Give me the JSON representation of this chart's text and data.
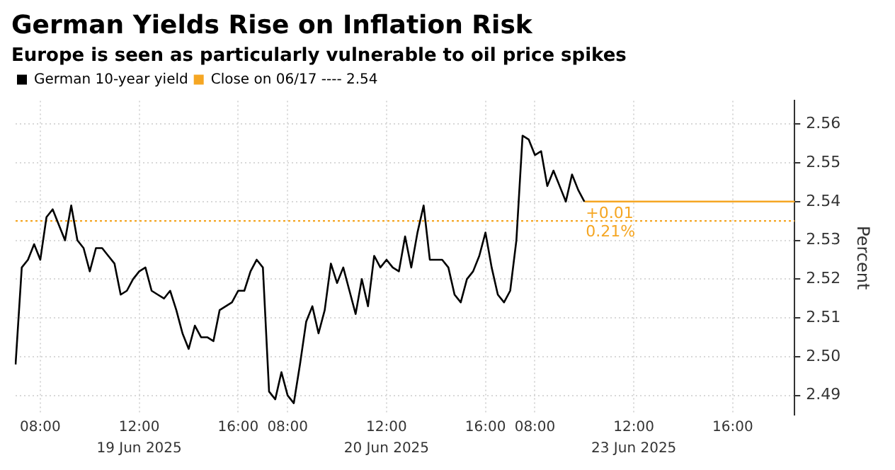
{
  "chart_data": {
    "type": "line",
    "title": "German Yields Rise on Inflation Risk",
    "subtitle": "Europe is seen as particularly vulnerable to oil price spikes",
    "ylabel": "Percent",
    "categories": [
      null,
      null,
      null,
      null,
      "08:00",
      null,
      null,
      null,
      null,
      null,
      null,
      null,
      null,
      null,
      null,
      null,
      null,
      null,
      null,
      null,
      "12:00",
      null,
      null,
      null,
      null,
      null,
      null,
      null,
      null,
      null,
      null,
      null,
      null,
      null,
      null,
      null,
      "16:00",
      null,
      null,
      null,
      null,
      null,
      null,
      null,
      "08:00",
      null,
      null,
      null,
      null,
      null,
      null,
      null,
      null,
      null,
      null,
      null,
      null,
      null,
      null,
      null,
      "12:00",
      null,
      null,
      null,
      null,
      null,
      null,
      null,
      null,
      null,
      null,
      null,
      null,
      null,
      null,
      null,
      "16:00",
      null,
      null,
      null,
      null,
      null,
      null,
      null,
      "08:00",
      null,
      null,
      null,
      null,
      null,
      null,
      null,
      null,
      null,
      null,
      null,
      null,
      null,
      null,
      null,
      "12:00",
      null,
      null,
      null,
      null,
      null,
      null,
      null,
      null,
      null,
      null,
      null,
      null,
      null,
      null,
      null,
      "16:00",
      null,
      null,
      null,
      null,
      null,
      null,
      null,
      null,
      null,
      null
    ],
    "series": [
      {
        "name": "German 10-year yield",
        "color": "#000000",
        "values": [
          2.498,
          2.523,
          2.525,
          2.529,
          2.525,
          2.536,
          2.538,
          2.534,
          2.53,
          2.539,
          2.53,
          2.528,
          2.522,
          2.528,
          2.528,
          2.526,
          2.524,
          2.516,
          2.517,
          2.52,
          2.522,
          2.523,
          2.517,
          2.516,
          2.515,
          2.517,
          2.512,
          2.506,
          2.502,
          2.508,
          2.505,
          2.505,
          2.504,
          2.512,
          2.513,
          2.514,
          2.517,
          2.517,
          2.522,
          2.525,
          2.523,
          2.491,
          2.489,
          2.496,
          2.49,
          2.488,
          2.498,
          2.509,
          2.513,
          2.506,
          2.512,
          2.524,
          2.519,
          2.523,
          2.517,
          2.511,
          2.52,
          2.513,
          2.526,
          2.523,
          2.525,
          2.523,
          2.522,
          2.531,
          2.523,
          2.532,
          2.539,
          2.525,
          2.525,
          2.525,
          2.523,
          2.516,
          2.514,
          2.52,
          2.522,
          2.526,
          2.532,
          2.523,
          2.516,
          2.514,
          2.517,
          2.53,
          2.557,
          2.556,
          2.552,
          2.553,
          2.544,
          2.548,
          2.544,
          2.54,
          2.547,
          2.543,
          2.54,
          null,
          null,
          null,
          null,
          null,
          null,
          null,
          null,
          null,
          null,
          null,
          null,
          null,
          null,
          null,
          null,
          null,
          null,
          null,
          null,
          null,
          null,
          null,
          null,
          null,
          null,
          null,
          null,
          null,
          null,
          null,
          null,
          null,
          null
        ]
      },
      {
        "color": "#f5a623",
        "values": [
          null,
          null,
          null,
          null,
          null,
          null,
          null,
          null,
          null,
          null,
          null,
          null,
          null,
          null,
          null,
          null,
          null,
          null,
          null,
          null,
          null,
          null,
          null,
          null,
          null,
          null,
          null,
          null,
          null,
          null,
          null,
          null,
          null,
          null,
          null,
          null,
          null,
          null,
          null,
          null,
          null,
          null,
          null,
          null,
          null,
          null,
          null,
          null,
          null,
          null,
          null,
          null,
          null,
          null,
          null,
          null,
          null,
          null,
          null,
          null,
          null,
          null,
          null,
          null,
          null,
          null,
          null,
          null,
          null,
          null,
          null,
          null,
          null,
          null,
          null,
          null,
          null,
          null,
          null,
          null,
          null,
          null,
          null,
          null,
          null,
          null,
          null,
          null,
          null,
          null,
          null,
          null,
          2.54,
          2.54,
          2.54,
          2.54,
          2.54,
          2.54,
          2.54,
          2.54,
          2.54,
          2.54,
          2.54,
          2.54,
          2.54,
          2.54,
          2.54,
          2.54,
          2.54,
          2.54,
          2.54,
          2.54,
          2.54,
          2.54,
          2.54,
          2.54,
          2.54,
          2.54,
          2.54,
          2.54,
          2.54,
          2.54,
          2.54,
          2.54,
          2.54,
          2.54,
          2.54
        ]
      }
    ],
    "ylim": [
      2.485,
      2.566
    ],
    "yticks": [
      {
        "value": 2.49,
        "label": "2.49"
      },
      {
        "value": 2.5,
        "label": "2.50"
      },
      {
        "value": 2.51,
        "label": "2.51"
      },
      {
        "value": 2.52,
        "label": "2.52"
      },
      {
        "value": 2.53,
        "label": "2.53"
      },
      {
        "value": 2.54,
        "label": "2.54"
      },
      {
        "value": 2.55,
        "label": "2.55"
      },
      {
        "value": 2.56,
        "label": "2.56"
      }
    ],
    "ref_lines": [
      {
        "axis": "y",
        "value": 2.535,
        "label": "Close on 06/17 ---- 2.54",
        "color": "#f5a623",
        "line_style": "dotted"
      }
    ],
    "annotations": [
      {
        "text": "+0.01",
        "y": 2.54
      },
      {
        "text": "0.21%",
        "y": 2.54
      },
      "19 Jun 2025",
      "20 Jun 2025",
      "23 Jun 2025"
    ],
    "grid": true,
    "legend": "top left",
    "marker": "none",
    "line_style": "solid"
  }
}
